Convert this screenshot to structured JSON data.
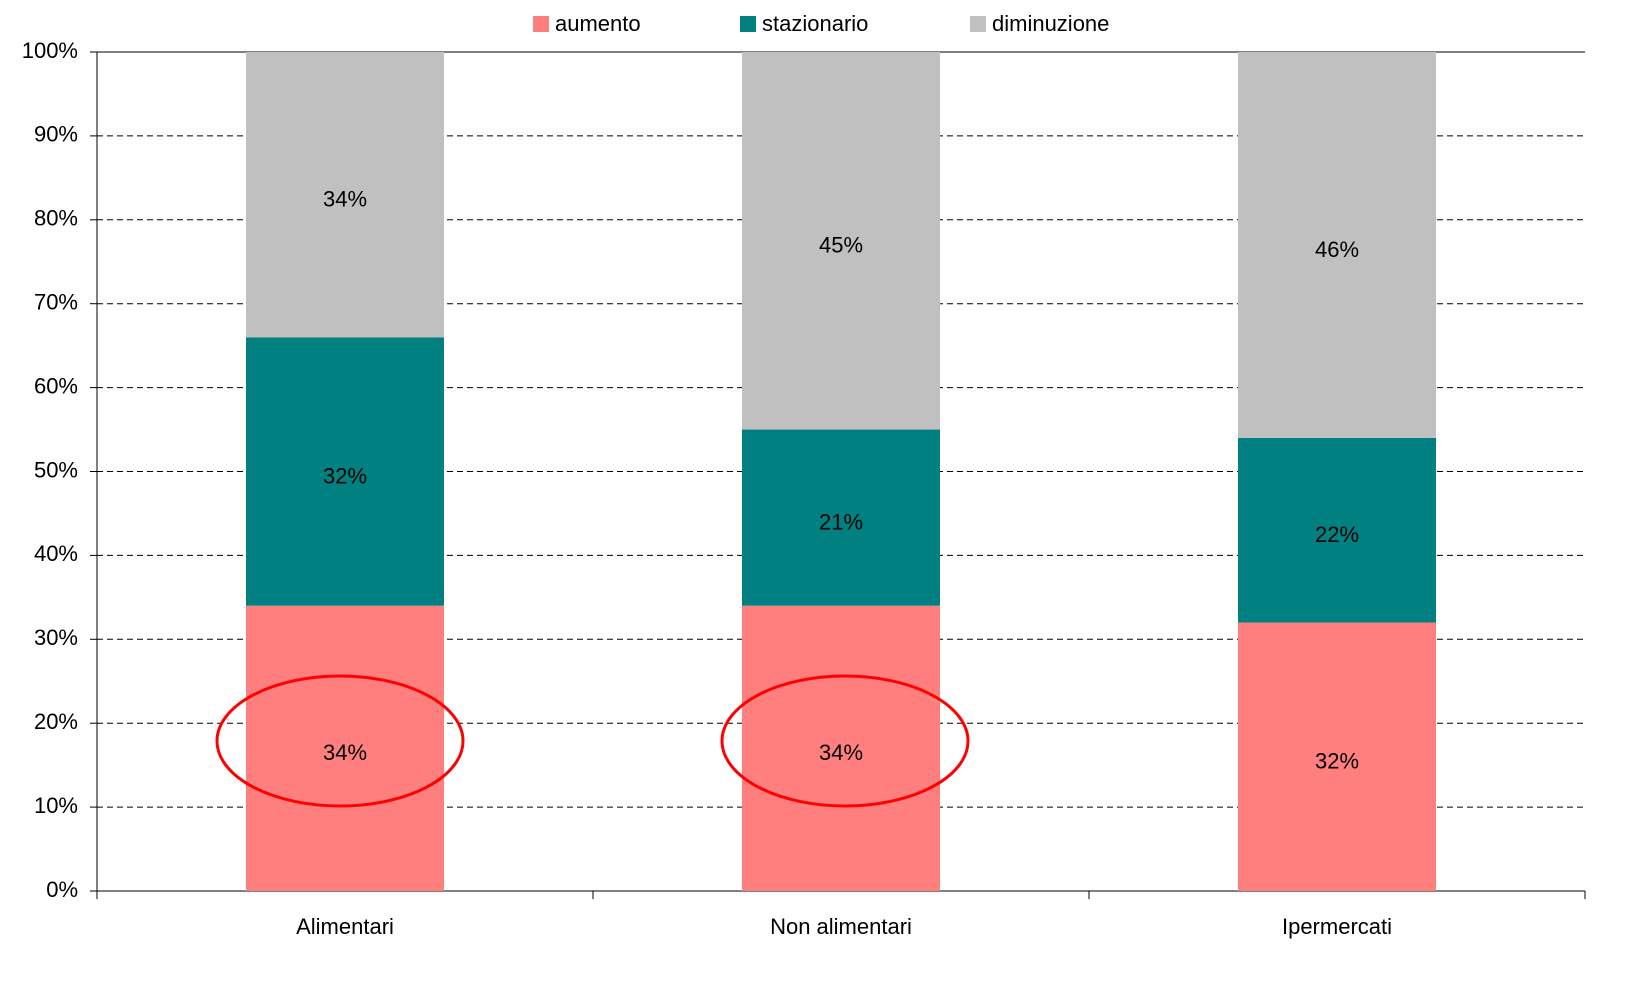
{
  "chart_data": {
    "type": "stacked_bar",
    "categories": [
      "Alimentari",
      "Non alimentari",
      "Ipermercati"
    ],
    "series": [
      {
        "name": "aumento",
        "color": "#ff7f7f",
        "values": [
          34,
          34,
          32
        ],
        "value_labels": [
          "34%",
          "34%",
          "32%"
        ]
      },
      {
        "name": "stazionario",
        "color": "#008080",
        "values": [
          32,
          21,
          22
        ],
        "value_labels": [
          "32%",
          "21%",
          "22%"
        ]
      },
      {
        "name": "diminuzione",
        "color": "#c0c0c0",
        "values": [
          34,
          45,
          46
        ],
        "value_labels": [
          "34%",
          "45%",
          "46%"
        ]
      }
    ],
    "ylim": [
      0,
      100
    ],
    "yticks": [
      {
        "value": 0,
        "label": "0%"
      },
      {
        "value": 10,
        "label": "10%"
      },
      {
        "value": 20,
        "label": "20%"
      },
      {
        "value": 30,
        "label": "30%"
      },
      {
        "value": 40,
        "label": "40%"
      },
      {
        "value": 50,
        "label": "50%"
      },
      {
        "value": 60,
        "label": "60%"
      },
      {
        "value": 70,
        "label": "70%"
      },
      {
        "value": 80,
        "label": "80%"
      },
      {
        "value": 90,
        "label": "90%"
      },
      {
        "value": 100,
        "label": "100%"
      }
    ],
    "grid": true,
    "legend": "top"
  }
}
